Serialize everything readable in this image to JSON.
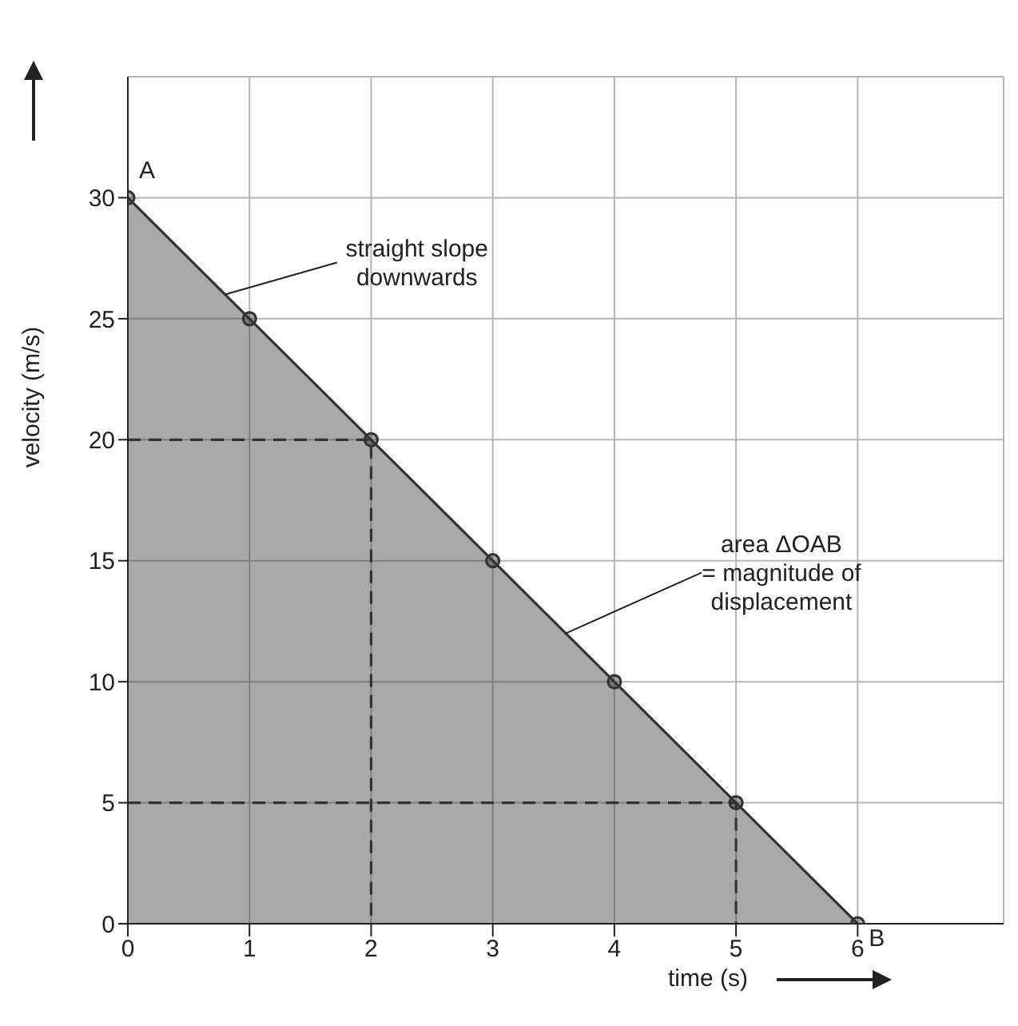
{
  "chart_data": {
    "type": "area",
    "xlabel": "time (s)",
    "ylabel": "velocity (m/s)",
    "x": [
      0,
      1,
      2,
      3,
      4,
      5,
      6
    ],
    "series": [
      {
        "color": "#333333",
        "values": [
          30,
          25,
          20,
          15,
          10,
          5,
          0
        ],
        "marker": "circle"
      },
      {
        "type": "line",
        "color": "#333333",
        "x": [
          0,
          2,
          2
        ],
        "values": [
          20,
          20,
          0
        ],
        "line_style": "dashed",
        "marker": "none"
      },
      {
        "type": "line",
        "color": "#333333",
        "x": [
          0,
          5,
          5
        ],
        "values": [
          5,
          5,
          0
        ],
        "line_style": "dashed",
        "marker": "none"
      }
    ],
    "xlim": [
      0,
      7.2
    ],
    "xticks": [
      0,
      1,
      2,
      3,
      4,
      5,
      6
    ],
    "ylim": [
      0,
      35
    ],
    "yticks": [
      0,
      5,
      10,
      15,
      20,
      25,
      30
    ],
    "grid": true,
    "annotations": [
      {
        "text": "A",
        "x": 0,
        "y": 30
      },
      {
        "text": "B",
        "x": 6,
        "y": 0
      },
      {
        "text": "straight slope downwards",
        "x": 0.8,
        "y": 26
      },
      {
        "text": "area ΔOAB = magnitude of displacement",
        "x": 3.6,
        "y": 12
      }
    ]
  }
}
